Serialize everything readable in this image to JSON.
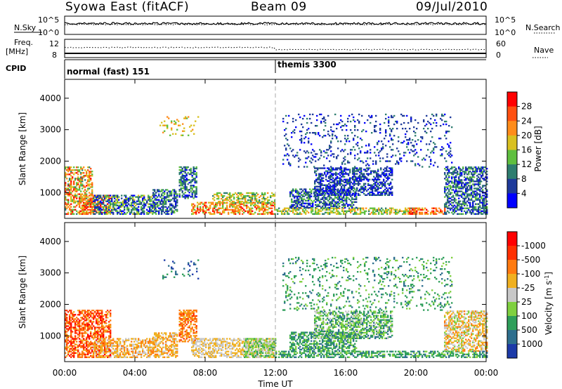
{
  "header": {
    "station": "Syowa East (fitACF)",
    "beam": "Beam 09",
    "date": "09/Jul/2010"
  },
  "strips": {
    "nsky_label": "N.Sky",
    "nsky_ticks": [
      "10^5",
      "10^0"
    ],
    "nsearch_label": "N.Search",
    "nsearch_ticks": [
      "10^5",
      "10^0"
    ],
    "freq_label": "Freq.",
    "freq_unit": "[MHz]",
    "freq_ticks": [
      "12",
      "8"
    ],
    "nave_label": "Nave",
    "nave_ticks": [
      "60",
      "0"
    ],
    "cpid_label": "CPID",
    "cpid_segments": [
      {
        "name": "normal (fast) 151",
        "start_hour": 0
      },
      {
        "name": "themis 3300",
        "start_hour": 12
      }
    ]
  },
  "chart_data": [
    {
      "type": "heatmap",
      "quantity": "Power",
      "ylabel": "Slant Range [km]",
      "xlabel": "",
      "ylim": [
        180,
        4600
      ],
      "yticks": [
        1000,
        2000,
        3000,
        4000
      ],
      "colorbar_label": "Power [dB]",
      "colorbar_ticks": [
        "4",
        "8",
        "12",
        "16",
        "20",
        "24",
        "28"
      ],
      "colorbar_colors": [
        "#0000ff",
        "#1e3a9a",
        "#2e7d6f",
        "#5fbf3f",
        "#d9c020",
        "#ff8c1a",
        "#ff5010",
        "#ff0000"
      ],
      "regions": [
        {
          "t": [
            0.0,
            1.6
          ],
          "r": [
            300,
            1800
          ],
          "level": [
            2,
            7
          ]
        },
        {
          "t": [
            0.8,
            2.6
          ],
          "r": [
            300,
            900
          ],
          "level": [
            4,
            7
          ]
        },
        {
          "t": [
            1.6,
            5.2
          ],
          "r": [
            300,
            900
          ],
          "level": [
            0,
            4
          ]
        },
        {
          "t": [
            5.0,
            6.4
          ],
          "r": [
            300,
            1100
          ],
          "level": [
            0,
            3
          ]
        },
        {
          "t": [
            6.5,
            7.5
          ],
          "r": [
            800,
            1800
          ],
          "level": [
            0,
            3
          ]
        },
        {
          "t": [
            7.2,
            12.0
          ],
          "r": [
            300,
            700
          ],
          "level": [
            3,
            7
          ]
        },
        {
          "t": [
            8.4,
            12.0
          ],
          "r": [
            650,
            1000
          ],
          "level": [
            2,
            5
          ]
        },
        {
          "t": [
            12.0,
            20.0
          ],
          "r": [
            300,
            500
          ],
          "level": [
            2,
            5
          ]
        },
        {
          "t": [
            12.8,
            16.6
          ],
          "r": [
            500,
            1100
          ],
          "level": [
            0,
            3
          ]
        },
        {
          "t": [
            14.2,
            18.6
          ],
          "r": [
            900,
            1800
          ],
          "level": [
            0,
            2
          ]
        },
        {
          "t": [
            19.6,
            21.6
          ],
          "r": [
            300,
            500
          ],
          "level": [
            4,
            7
          ]
        },
        {
          "t": [
            21.6,
            24.0
          ],
          "r": [
            300,
            1800
          ],
          "level": [
            0,
            3
          ]
        },
        {
          "t": [
            5.4,
            7.6
          ],
          "r": [
            2800,
            3400
          ],
          "level": [
            3,
            5
          ]
        },
        {
          "t": [
            12.4,
            22.0
          ],
          "r": [
            1800,
            3500
          ],
          "level": [
            0,
            2
          ]
        }
      ]
    },
    {
      "type": "heatmap",
      "quantity": "Velocity",
      "ylabel": "Slant Range [km]",
      "xlabel": "Time UT",
      "ylim": [
        180,
        4600
      ],
      "yticks": [
        1000,
        2000,
        3000,
        4000
      ],
      "xticks": [
        "00:00",
        "04:00",
        "08:00",
        "12:00",
        "16:00",
        "20:00",
        "00:00"
      ],
      "xlim_hours": [
        0,
        24
      ],
      "colorbar_label": "Velocity [m s^-1]",
      "colorbar_ticks": [
        "1000",
        "500",
        "100",
        "25",
        "-25",
        "-100",
        "-500",
        "-1000"
      ],
      "colorbar_colors": [
        "#1c3aa8",
        "#2e6f8e",
        "#2e9e5a",
        "#7fd040",
        "#c8c8c8",
        "#f0b020",
        "#ff7a10",
        "#ff3000",
        "#ff0000"
      ],
      "regions": [
        {
          "t": [
            0.0,
            2.6
          ],
          "r": [
            300,
            1800
          ],
          "level": [
            5,
            8
          ]
        },
        {
          "t": [
            1.6,
            5.2
          ],
          "r": [
            300,
            900
          ],
          "level": [
            4,
            6
          ]
        },
        {
          "t": [
            5.0,
            6.4
          ],
          "r": [
            300,
            1100
          ],
          "level": [
            4,
            6
          ]
        },
        {
          "t": [
            6.5,
            7.5
          ],
          "r": [
            800,
            1800
          ],
          "level": [
            5,
            7
          ]
        },
        {
          "t": [
            7.2,
            12.0
          ],
          "r": [
            300,
            900
          ],
          "level": [
            4,
            5
          ]
        },
        {
          "t": [
            10.2,
            12.0
          ],
          "r": [
            300,
            900
          ],
          "level": [
            2,
            4
          ]
        },
        {
          "t": [
            12.0,
            24.0
          ],
          "r": [
            300,
            500
          ],
          "level": [
            1,
            3
          ]
        },
        {
          "t": [
            12.8,
            16.6
          ],
          "r": [
            500,
            1100
          ],
          "level": [
            1,
            3
          ]
        },
        {
          "t": [
            14.2,
            18.6
          ],
          "r": [
            900,
            1800
          ],
          "level": [
            1,
            4
          ]
        },
        {
          "t": [
            21.6,
            24.0
          ],
          "r": [
            500,
            1800
          ],
          "level": [
            3,
            6
          ]
        },
        {
          "t": [
            5.4,
            7.6
          ],
          "r": [
            2800,
            3400
          ],
          "level": [
            0,
            2
          ]
        },
        {
          "t": [
            12.4,
            22.0
          ],
          "r": [
            1800,
            3500
          ],
          "level": [
            1,
            3
          ]
        }
      ]
    }
  ]
}
